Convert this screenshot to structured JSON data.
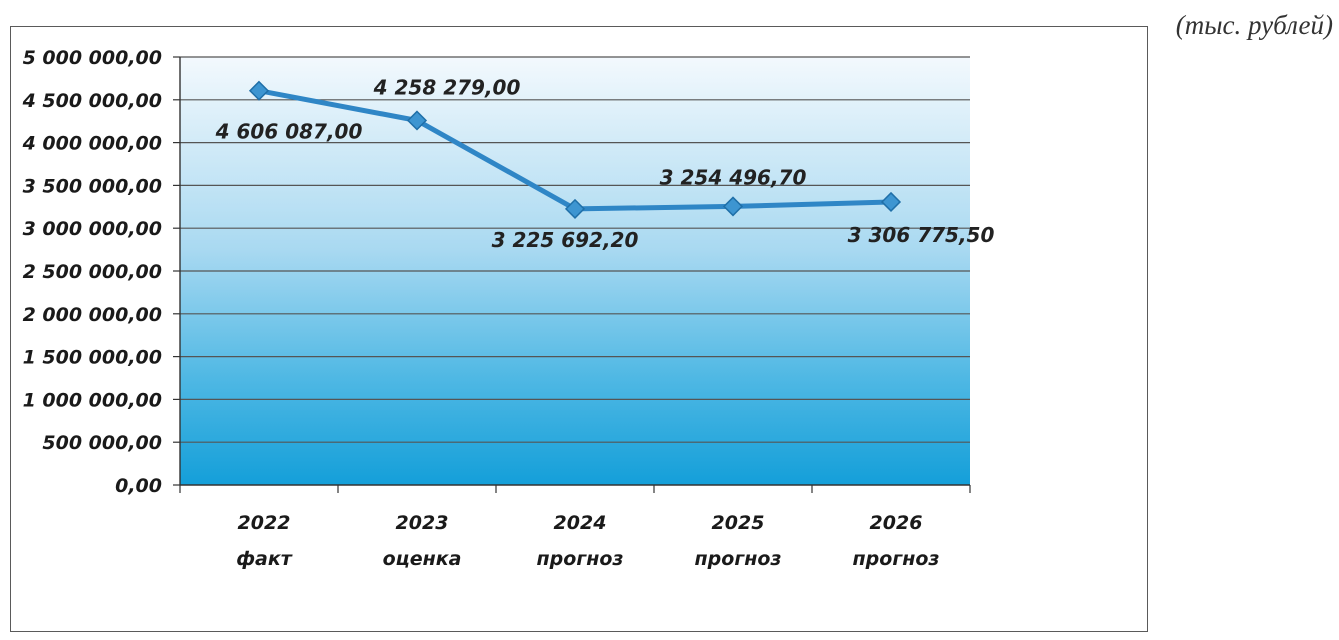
{
  "units_label": "(тыс. рублей)",
  "chart_data": {
    "type": "line",
    "categories": [
      [
        "2022",
        "факт"
      ],
      [
        "2023",
        "оценка"
      ],
      [
        "2024",
        "прогноз"
      ],
      [
        "2025",
        "прогноз"
      ],
      [
        "2026",
        "прогноз"
      ]
    ],
    "series": [
      {
        "values": [
          4606087.0,
          4258279.0,
          3225692.2,
          3254496.7,
          3306775.5
        ],
        "labels": [
          "4 606 087,00",
          "4 258 279,00",
          "3 225 692,20",
          "3 254 496,70",
          "3 306 775,50"
        ],
        "color": "#2f86c6"
      }
    ],
    "ylim": [
      0,
      5000000
    ],
    "y_step": 500000,
    "y_tick_labels": [
      "0,00",
      "500 000,00",
      "1 000 000,00",
      "1 500 000,00",
      "2 000 000,00",
      "2 500 000,00",
      "3 000 000,00",
      "3 500 000,00",
      "4 000 000,00",
      "4 500 000,00",
      "5 000 000,00"
    ],
    "grid": true,
    "plot_fill_top": "#f3f9fd",
    "plot_fill_bottom": "#149fd9",
    "title": "",
    "xlabel": "",
    "ylabel": ""
  }
}
